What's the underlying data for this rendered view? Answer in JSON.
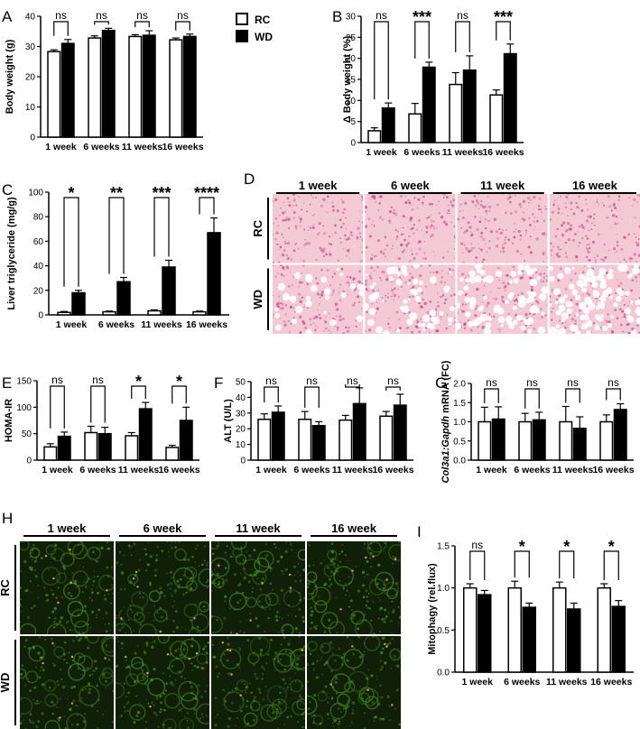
{
  "legend": {
    "rc": "RC",
    "wd": "WD"
  },
  "chart_data": [
    {
      "id": "A",
      "panel_label": "A",
      "type": "bar",
      "categories": [
        "1 week",
        "6 weeks",
        "11 weeks",
        "16 weeks"
      ],
      "ylabel": "Body weight (g)",
      "ylim": [
        0,
        40
      ],
      "yticks": [
        0,
        10,
        20,
        30,
        40
      ],
      "series": [
        {
          "name": "RC",
          "values": [
            28.3,
            32.8,
            33.3,
            32.2
          ],
          "errors": [
            0.6,
            0.7,
            0.6,
            0.6
          ]
        },
        {
          "name": "WD",
          "values": [
            31.0,
            35.3,
            33.7,
            33.3
          ],
          "errors": [
            1.3,
            0.7,
            1.5,
            0.8
          ]
        }
      ],
      "significance": [
        "ns",
        "ns",
        "ns",
        "ns"
      ]
    },
    {
      "id": "B",
      "panel_label": "B",
      "type": "bar",
      "categories": [
        "1 week",
        "6 weeks",
        "11 weeks",
        "16 weeks"
      ],
      "ylabel": "Δ Body weight (%)",
      "ylim": [
        0,
        30
      ],
      "yticks": [
        0,
        5,
        10,
        15,
        20,
        25,
        30
      ],
      "series": [
        {
          "name": "RC",
          "values": [
            2.8,
            6.8,
            13.8,
            11.3
          ],
          "errors": [
            0.7,
            2.5,
            2.8,
            1.2
          ]
        },
        {
          "name": "WD",
          "values": [
            8.2,
            17.9,
            17.2,
            21.1
          ],
          "errors": [
            1.2,
            1.2,
            3.4,
            2.3
          ]
        }
      ],
      "significance": [
        "ns",
        "***",
        "ns",
        "***"
      ]
    },
    {
      "id": "C",
      "panel_label": "C",
      "type": "bar",
      "categories": [
        "1 week",
        "6 weeks",
        "11 weeks",
        "16 weeks"
      ],
      "ylabel": "Liver triglyceride (mg/g)",
      "ylim": [
        0,
        100
      ],
      "yticks": [
        0,
        20,
        40,
        60,
        80,
        100
      ],
      "series": [
        {
          "name": "RC",
          "values": [
            2.0,
            2.5,
            3.3,
            2.5
          ],
          "errors": [
            0.8,
            0.6,
            0.8,
            0.6
          ]
        },
        {
          "name": "WD",
          "values": [
            18.0,
            27.0,
            39.0,
            67.0
          ],
          "errors": [
            2.0,
            3.5,
            5.5,
            12.0
          ]
        }
      ],
      "significance": [
        "*",
        "**",
        "***",
        "****"
      ]
    },
    {
      "id": "E",
      "panel_label": "E",
      "type": "bar",
      "categories": [
        "1 week",
        "6 weeks",
        "11 weeks",
        "16 weeks"
      ],
      "ylabel": "HOMA-IR",
      "ylim": [
        0,
        150
      ],
      "yticks": [
        0,
        50,
        100,
        150
      ],
      "series": [
        {
          "name": "RC",
          "values": [
            25,
            52,
            46,
            24
          ],
          "errors": [
            6,
            12,
            6,
            4
          ]
        },
        {
          "name": "WD",
          "values": [
            45,
            50,
            97,
            75
          ],
          "errors": [
            8,
            12,
            12,
            25
          ]
        }
      ],
      "significance": [
        "ns",
        "ns",
        "*",
        "*"
      ]
    },
    {
      "id": "F",
      "panel_label": "F",
      "type": "bar",
      "categories": [
        "1 week",
        "6 weeks",
        "11 weeks",
        "16 weeks"
      ],
      "ylabel": "ALT (U/L)",
      "ylim": [
        0,
        50
      ],
      "yticks": [
        0,
        10,
        20,
        30,
        40,
        50
      ],
      "series": [
        {
          "name": "RC",
          "values": [
            26,
            26,
            25.5,
            28
          ],
          "errors": [
            3.5,
            5,
            3,
            3
          ]
        },
        {
          "name": "WD",
          "values": [
            30.5,
            22,
            36,
            35
          ],
          "errors": [
            4,
            2.5,
            10,
            7
          ]
        }
      ],
      "significance": [
        "ns",
        "ns",
        "ns",
        "ns"
      ]
    },
    {
      "id": "G",
      "panel_label": "G",
      "type": "bar",
      "categories": [
        "1 week",
        "6 weeks",
        "11 weeks",
        "16 weeks"
      ],
      "ylabel_gene": "Col3a1:Gapdh",
      "ylabel_rest": " mRNA (FC)",
      "ylim": [
        0,
        2.0
      ],
      "yticks": [
        0.0,
        0.5,
        1.0,
        1.5,
        2.0
      ],
      "series": [
        {
          "name": "RC",
          "values": [
            1.0,
            1.0,
            1.0,
            1.0
          ],
          "errors": [
            0.38,
            0.22,
            0.4,
            0.18
          ]
        },
        {
          "name": "WD",
          "values": [
            1.07,
            1.05,
            0.83,
            1.32
          ],
          "errors": [
            0.32,
            0.2,
            0.3,
            0.15
          ]
        }
      ],
      "significance": [
        "ns",
        "ns",
        "ns",
        "ns"
      ]
    },
    {
      "id": "I",
      "panel_label": "I",
      "type": "bar",
      "categories": [
        "1 week",
        "6 weeks",
        "11 weeks",
        "16 weeks"
      ],
      "ylabel": "Mitophagy (rel.flux)",
      "ylim": [
        0,
        1.5
      ],
      "yticks": [
        0.0,
        0.5,
        1.0,
        1.5
      ],
      "series": [
        {
          "name": "RC",
          "values": [
            1.0,
            1.0,
            1.0,
            1.0
          ],
          "errors": [
            0.05,
            0.08,
            0.07,
            0.05
          ]
        },
        {
          "name": "WD",
          "values": [
            0.92,
            0.77,
            0.75,
            0.78
          ],
          "errors": [
            0.05,
            0.05,
            0.07,
            0.07
          ]
        }
      ],
      "significance": [
        "ns",
        "*",
        "*",
        "*"
      ]
    }
  ],
  "images": [
    {
      "id": "D",
      "panel_label": "D",
      "columns": [
        "1 week",
        "6 week",
        "11 week",
        "16 week"
      ],
      "rows": [
        "RC",
        "WD"
      ],
      "colors": {
        "base": "#f3c9d6",
        "spot": "#c24d86",
        "vacuole": "#ffffff"
      }
    },
    {
      "id": "H",
      "panel_label": "H",
      "columns": [
        "1 week",
        "6 week",
        "11 week",
        "16 week"
      ],
      "rows": [
        "RC",
        "WD"
      ],
      "colors": {
        "base": "#102008",
        "spot": "#4c8f1c",
        "accent": "#d8b020"
      }
    }
  ]
}
